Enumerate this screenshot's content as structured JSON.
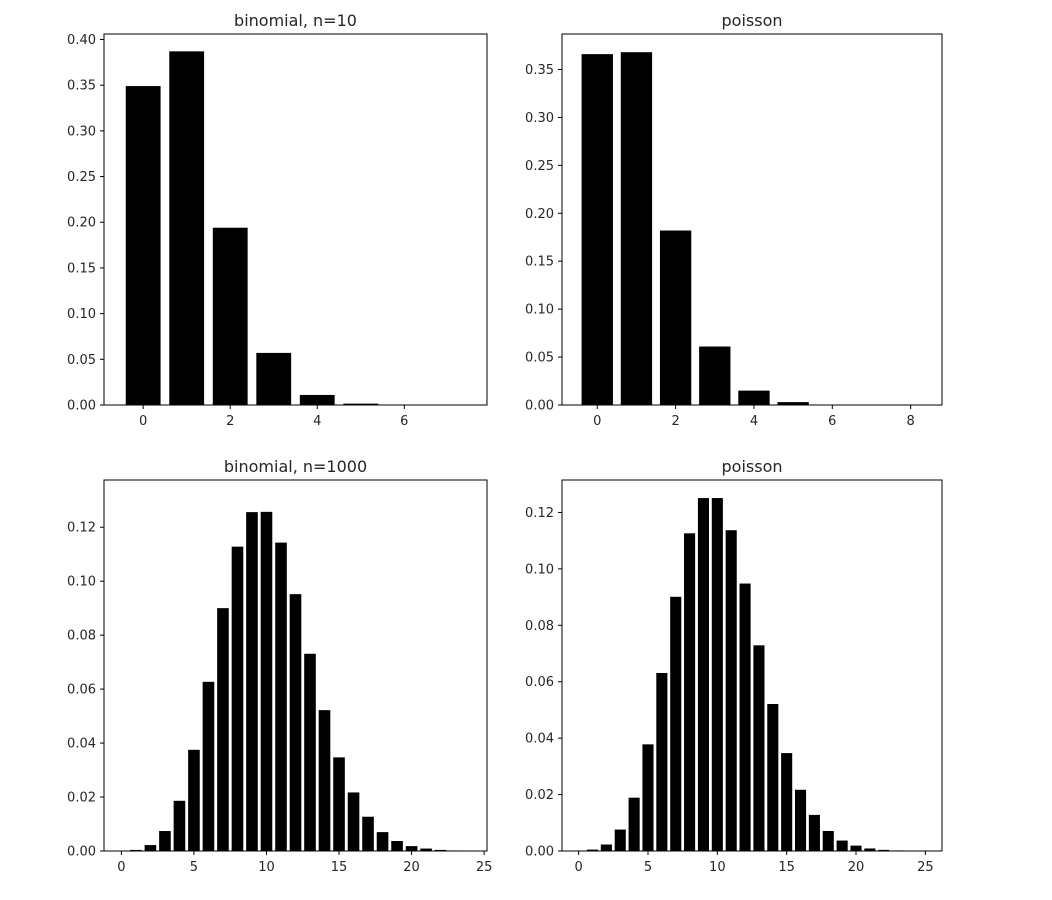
{
  "chart_data": [
    {
      "type": "bar",
      "title": "binomial, n=10",
      "xlabel": "",
      "ylabel": "",
      "x": [
        0,
        1,
        2,
        3,
        4,
        5,
        6,
        7
      ],
      "values": [
        0.349,
        0.387,
        0.194,
        0.057,
        0.011,
        0.0015,
        0.0001,
        0.0
      ],
      "xlim": [
        -0.9,
        7.9
      ],
      "ylim": [
        0,
        0.406
      ],
      "xticks": [
        0,
        2,
        4,
        6
      ],
      "xtick_labels": [
        "0",
        "2",
        "4",
        "6"
      ],
      "yticks": [
        0.0,
        0.05,
        0.1,
        0.15,
        0.2,
        0.25,
        0.3,
        0.35,
        0.4
      ],
      "ytick_labels": [
        "0.00",
        "0.05",
        "0.10",
        "0.15",
        "0.20",
        "0.25",
        "0.30",
        "0.35",
        "0.40"
      ],
      "grid": false,
      "bar_color": "#000000"
    },
    {
      "type": "bar",
      "title": "poisson",
      "xlabel": "",
      "ylabel": "",
      "x": [
        0,
        1,
        2,
        3,
        4,
        5,
        6,
        7,
        8
      ],
      "values": [
        0.366,
        0.368,
        0.182,
        0.061,
        0.015,
        0.003,
        0.0005,
        0.0001,
        0.0
      ],
      "xlim": [
        -0.9,
        8.8
      ],
      "ylim": [
        0,
        0.387
      ],
      "xticks": [
        0,
        2,
        4,
        6,
        8
      ],
      "xtick_labels": [
        "0",
        "2",
        "4",
        "6",
        "8"
      ],
      "yticks": [
        0.0,
        0.05,
        0.1,
        0.15,
        0.2,
        0.25,
        0.3,
        0.35
      ],
      "ytick_labels": [
        "0.00",
        "0.05",
        "0.10",
        "0.15",
        "0.20",
        "0.25",
        "0.30",
        "0.35"
      ],
      "grid": false,
      "bar_color": "#000000"
    },
    {
      "type": "bar",
      "title": "binomial, n=1000",
      "xlabel": "",
      "ylabel": "",
      "x": [
        0,
        1,
        2,
        3,
        4,
        5,
        6,
        7,
        8,
        9,
        10,
        11,
        12,
        13,
        14,
        15,
        16,
        17,
        18,
        19,
        20,
        21,
        22,
        23,
        24
      ],
      "values": [
        0.0,
        0.0004,
        0.0022,
        0.0074,
        0.0186,
        0.0375,
        0.0627,
        0.09,
        0.1128,
        0.1256,
        0.1257,
        0.1143,
        0.0952,
        0.0731,
        0.0522,
        0.0347,
        0.0217,
        0.0127,
        0.007,
        0.0037,
        0.0018,
        0.0009,
        0.0004,
        0.0002,
        0.0001
      ],
      "xlim": [
        -1.2,
        25.2
      ],
      "ylim": [
        0,
        0.1375
      ],
      "xticks": [
        0,
        5,
        10,
        15,
        20,
        25
      ],
      "xtick_labels": [
        "0",
        "5",
        "10",
        "15",
        "20",
        "25"
      ],
      "yticks": [
        0.0,
        0.02,
        0.04,
        0.06,
        0.08,
        0.1,
        0.12
      ],
      "ytick_labels": [
        "0.00",
        "0.02",
        "0.04",
        "0.06",
        "0.08",
        "0.10",
        "0.12"
      ],
      "grid": false,
      "bar_color": "#000000"
    },
    {
      "type": "bar",
      "title": "poisson",
      "xlabel": "",
      "ylabel": "",
      "x": [
        0,
        1,
        2,
        3,
        4,
        5,
        6,
        7,
        8,
        9,
        10,
        11,
        12,
        13,
        14,
        15,
        16,
        17,
        18,
        19,
        20,
        21,
        22,
        23,
        24,
        25
      ],
      "values": [
        0.0,
        0.0005,
        0.0023,
        0.0076,
        0.0189,
        0.0378,
        0.0631,
        0.0901,
        0.1126,
        0.1251,
        0.1251,
        0.1137,
        0.0948,
        0.0729,
        0.0521,
        0.0347,
        0.0217,
        0.0128,
        0.0071,
        0.0037,
        0.0019,
        0.0009,
        0.0004,
        0.0002,
        0.0001,
        0.0
      ],
      "xlim": [
        -1.2,
        26.2
      ],
      "ylim": [
        0,
        0.1315
      ],
      "xticks": [
        0,
        5,
        10,
        15,
        20,
        25
      ],
      "xtick_labels": [
        "0",
        "5",
        "10",
        "15",
        "20",
        "25"
      ],
      "yticks": [
        0.0,
        0.02,
        0.04,
        0.06,
        0.08,
        0.1,
        0.12
      ],
      "ytick_labels": [
        "0.00",
        "0.02",
        "0.04",
        "0.06",
        "0.08",
        "0.10",
        "0.12"
      ],
      "grid": false,
      "bar_color": "#000000"
    }
  ]
}
